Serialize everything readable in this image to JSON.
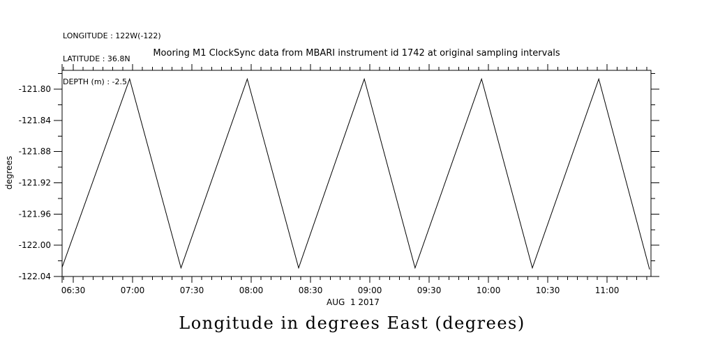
{
  "header_info": {
    "longitude": "LONGITUDE : 122W(-122)",
    "latitude": "LATITUDE : 36.8N",
    "depth": "DEPTH (m) : -2.5"
  },
  "title": "Mooring M1 ClockSync data from MBARI instrument id 1742 at original sampling intervals",
  "caption": "Longitude in degrees East (degrees)",
  "colors": {
    "background": "#ffffff",
    "foreground": "#000000"
  },
  "chart_data": {
    "type": "line",
    "title": "Mooring M1 ClockSync data from MBARI instrument id 1742 at original sampling intervals",
    "ylabel": "degrees",
    "grid": false,
    "x_axis": {
      "date_label": "AUG  1 2017",
      "unit": "time of day (HH:MM); t = minutes since midnight",
      "domain_t": [
        384.35,
        682.2
      ],
      "major_ticks": [
        {
          "t": 390,
          "label": "06:30"
        },
        {
          "t": 420,
          "label": "07:00"
        },
        {
          "t": 450,
          "label": "07:30"
        },
        {
          "t": 480,
          "label": "08:00"
        },
        {
          "t": 510,
          "label": "08:30"
        },
        {
          "t": 540,
          "label": "09:00"
        },
        {
          "t": 570,
          "label": "09:30"
        },
        {
          "t": 600,
          "label": "10:00"
        },
        {
          "t": 630,
          "label": "10:30"
        },
        {
          "t": 660,
          "label": "11:00"
        }
      ],
      "minor_tick_step_min": 5,
      "minor_tick_range_t": [
        385,
        680
      ],
      "edge_tick_at_left": true
    },
    "y_axis": {
      "domain": [
        -122.04,
        -121.7759
      ],
      "major_ticks": [
        {
          "value": -121.8,
          "label": "-121.80"
        },
        {
          "value": -121.84,
          "label": "-121.84"
        },
        {
          "value": -121.88,
          "label": "-121.88"
        },
        {
          "value": -121.92,
          "label": "-121.92"
        },
        {
          "value": -121.96,
          "label": "-121.96"
        },
        {
          "value": -122.0,
          "label": "-122.00"
        },
        {
          "value": -122.04,
          "label": "-122.04"
        }
      ],
      "minor_tick_step": 0.02,
      "minor_tick_range": [
        -122.04,
        -121.78
      ]
    },
    "series": [
      {
        "name": "longitude",
        "color": "#000000",
        "peak_value": -121.787,
        "trough_value": -122.029,
        "period_minutes": 59.3,
        "points": [
          [
            384.4,
            -122.028
          ],
          [
            418.5,
            -121.787
          ],
          [
            444.5,
            -122.029
          ],
          [
            478.0,
            -121.787
          ],
          [
            504.0,
            -122.029
          ],
          [
            537.2,
            -121.787
          ],
          [
            562.9,
            -122.029
          ],
          [
            596.5,
            -121.787
          ],
          [
            622.2,
            -122.029
          ],
          [
            655.8,
            -121.787
          ],
          [
            681.5,
            -122.031
          ]
        ]
      }
    ]
  }
}
